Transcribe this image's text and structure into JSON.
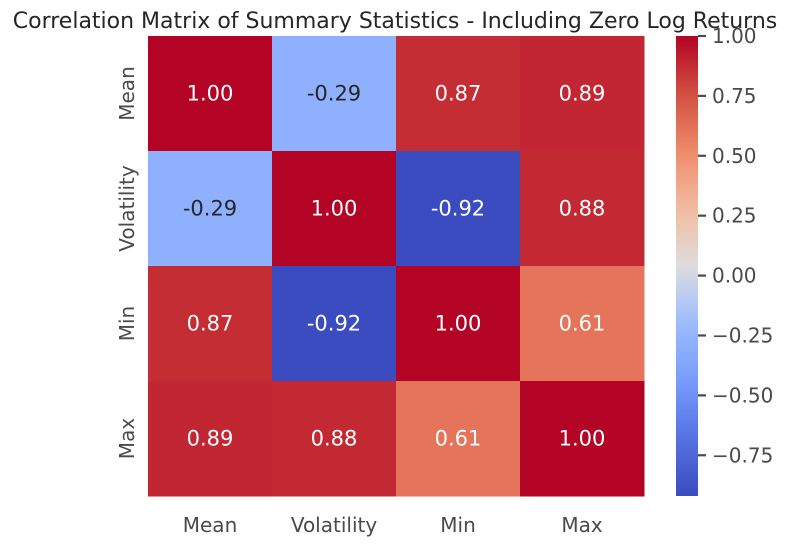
{
  "chart_data": {
    "type": "heatmap",
    "title": "Correlation Matrix of Summary Statistics - Including Zero Log Returns",
    "x_categories": [
      "Mean",
      "Volatility",
      "Min",
      "Max"
    ],
    "y_categories": [
      "Mean",
      "Volatility",
      "Min",
      "Max"
    ],
    "values": [
      [
        1.0,
        -0.29,
        0.87,
        0.89
      ],
      [
        -0.29,
        1.0,
        -0.92,
        0.88
      ],
      [
        0.87,
        -0.92,
        1.0,
        0.61
      ],
      [
        0.89,
        0.88,
        0.61,
        1.0
      ]
    ],
    "value_labels": [
      [
        "1.00",
        "-0.29",
        "0.87",
        "0.89"
      ],
      [
        "-0.29",
        "1.00",
        "-0.92",
        "0.88"
      ],
      [
        "0.87",
        "-0.92",
        "1.00",
        "0.61"
      ],
      [
        "0.89",
        "0.88",
        "0.61",
        "1.00"
      ]
    ],
    "colormap": "coolwarm",
    "color_range": [
      -0.92,
      1.0
    ],
    "colorbar_ticks": [
      1.0,
      0.75,
      0.5,
      0.25,
      0.0,
      -0.25,
      -0.5,
      -0.75
    ],
    "colorbar_tick_labels": [
      "1.00",
      "0.75",
      "0.50",
      "0.25",
      "0.00",
      "−0.25",
      "−0.50",
      "−0.75"
    ],
    "grid": false,
    "legend": "colorbar-right"
  }
}
